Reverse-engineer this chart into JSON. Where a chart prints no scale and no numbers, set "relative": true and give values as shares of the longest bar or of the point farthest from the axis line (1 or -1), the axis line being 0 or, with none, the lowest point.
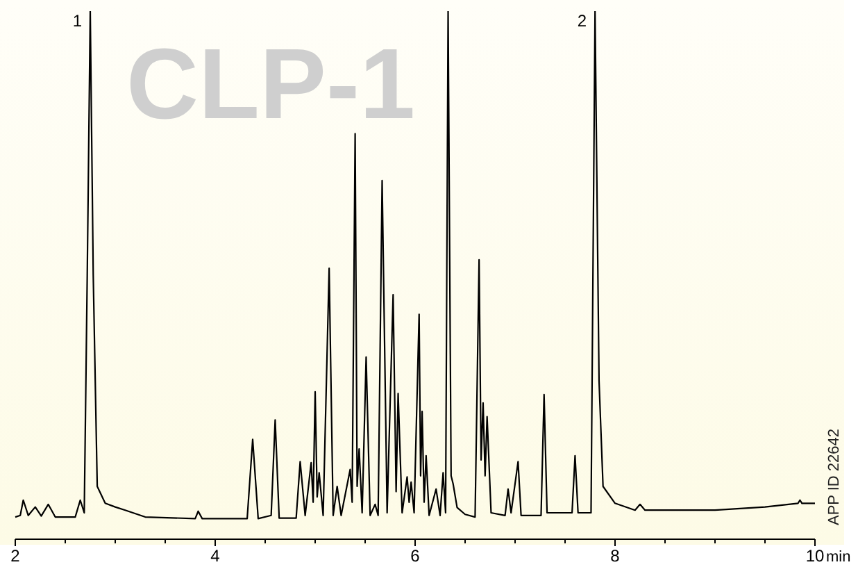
{
  "chart_data": {
    "type": "line",
    "title": "CLP-1",
    "xlabel": "min",
    "relative": true,
    "xlim": [
      2,
      10
    ],
    "xticks": [
      2,
      {
        "value": 2.5,
        "label": null
      },
      {
        "value": 3,
        "label": null
      },
      {
        "value": 3.5,
        "label": null
      },
      4,
      {
        "value": 4.5,
        "label": null
      },
      {
        "value": 5,
        "label": null
      },
      {
        "value": 5.5,
        "label": null
      },
      6,
      {
        "value": 6.5,
        "label": null
      },
      {
        "value": 7,
        "label": null
      },
      {
        "value": 7.5,
        "label": null
      },
      8,
      {
        "value": 8.5,
        "label": null
      },
      {
        "value": 9,
        "label": null
      },
      {
        "value": 9.5,
        "label": null
      },
      10
    ],
    "grid": false,
    "marker": "none",
    "line_style": "solid",
    "annotations": [
      {
        "text": "1",
        "x": 2.75,
        "y": 1
      },
      {
        "text": "2",
        "x": 7.8,
        "y": 1
      },
      "APP ID 22642"
    ],
    "series": [
      {
        "color": "#000000",
        "x": [
          2.0,
          2.05,
          2.08,
          2.13,
          2.2,
          2.26,
          2.33,
          2.4,
          2.6,
          2.65,
          2.69,
          2.72,
          2.75,
          2.78,
          2.82,
          2.9,
          3.0,
          3.1,
          3.3,
          3.8,
          3.83,
          3.87,
          4.32,
          4.375,
          4.43,
          4.56,
          4.6,
          4.64,
          4.81,
          4.85,
          4.9,
          4.96,
          4.98,
          5.0,
          5.02,
          5.04,
          5.08,
          5.14,
          5.18,
          5.22,
          5.26,
          5.35,
          5.37,
          5.4,
          5.42,
          5.44,
          5.47,
          5.51,
          5.55,
          5.6,
          5.63,
          5.67,
          5.72,
          5.78,
          5.81,
          5.83,
          5.87,
          5.92,
          5.94,
          5.96,
          5.99,
          6.04,
          6.055,
          6.07,
          6.09,
          6.11,
          6.14,
          6.21,
          6.25,
          6.28,
          6.305,
          6.33,
          6.36,
          6.38,
          6.42,
          6.5,
          6.6,
          6.64,
          6.66,
          6.68,
          6.7,
          6.72,
          6.76,
          6.9,
          6.93,
          6.96,
          7.03,
          7.06,
          7.26,
          7.29,
          7.32,
          7.57,
          7.6,
          7.63,
          7.76,
          7.8,
          7.84,
          7.88,
          8.0,
          8.2,
          8.25,
          8.3,
          9.0,
          9.5,
          9.83,
          9.85,
          9.87,
          10
        ],
        "values": [
          0.042,
          0.045,
          0.074,
          0.045,
          0.061,
          0.044,
          0.066,
          0.042,
          0.042,
          0.074,
          0.05,
          0.5,
          1,
          0.5,
          0.1,
          0.068,
          0.061,
          0.055,
          0.042,
          0.039,
          0.053,
          0.039,
          0.039,
          0.189,
          0.039,
          0.045,
          0.226,
          0.04,
          0.04,
          0.147,
          0.045,
          0.145,
          0.07,
          0.279,
          0.08,
          0.126,
          0.045,
          0.513,
          0.045,
          0.1,
          0.045,
          0.132,
          0.07,
          0.768,
          0.1,
          0.171,
          0.05,
          0.345,
          0.045,
          0.066,
          0.045,
          0.679,
          0.05,
          0.463,
          0.09,
          0.276,
          0.05,
          0.118,
          0.07,
          0.108,
          0.05,
          0.426,
          0.12,
          0.242,
          0.07,
          0.158,
          0.045,
          0.095,
          0.045,
          0.126,
          0.05,
          1,
          0.12,
          0.105,
          0.06,
          0.047,
          0.042,
          0.529,
          0.15,
          0.258,
          0.12,
          0.232,
          0.05,
          0.045,
          0.095,
          0.05,
          0.147,
          0.045,
          0.045,
          0.274,
          0.05,
          0.05,
          0.158,
          0.05,
          0.05,
          1,
          0.3,
          0.1,
          0.068,
          0.055,
          0.066,
          0.055,
          0.055,
          0.061,
          0.068,
          0.074,
          0.068,
          0.068
        ]
      }
    ]
  }
}
